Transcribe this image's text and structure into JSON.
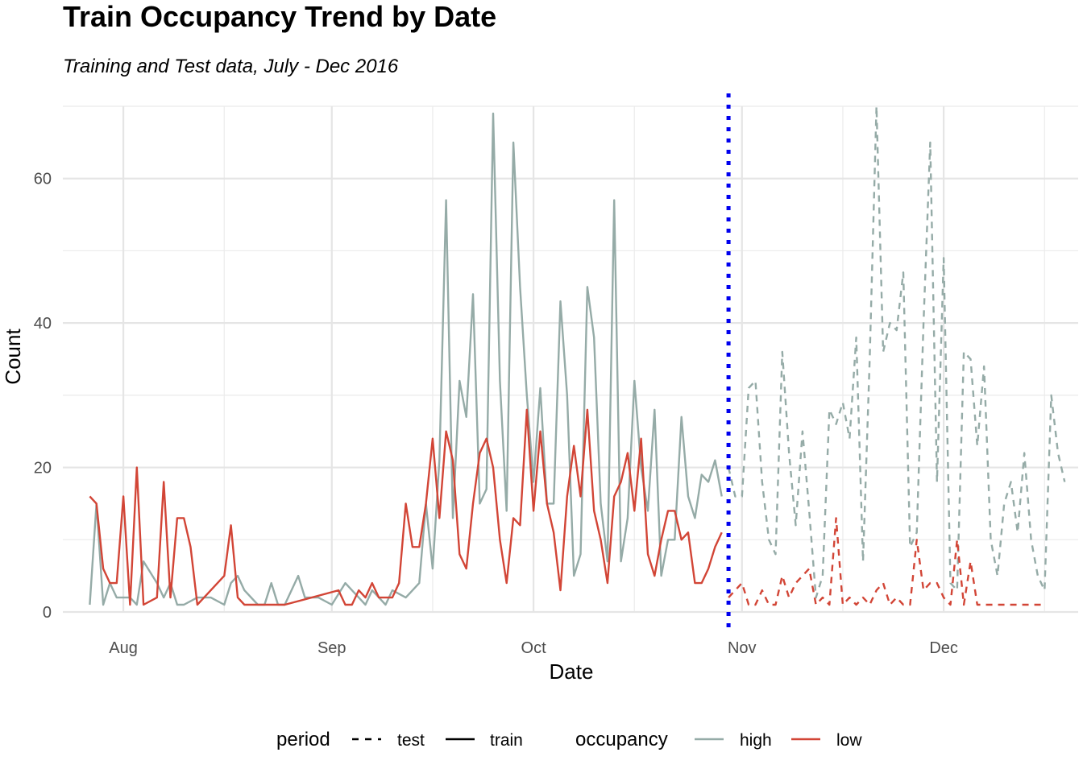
{
  "chart_data": {
    "type": "line",
    "title": "Train Occupancy Trend by Date",
    "subtitle": "Training and Test data, July - Dec 2016",
    "xlabel": "Date",
    "ylabel": "Count",
    "xlim": [
      "2016-07-23",
      "2016-12-21"
    ],
    "ylim": [
      0,
      70
    ],
    "grid": true,
    "x_ticks": [
      {
        "date": "2016-08-01",
        "label": "Aug"
      },
      {
        "date": "2016-09-01",
        "label": "Sep"
      },
      {
        "date": "2016-10-01",
        "label": "Oct"
      },
      {
        "date": "2016-11-01",
        "label": "Nov"
      },
      {
        "date": "2016-12-01",
        "label": "Dec"
      }
    ],
    "y_ticks": [
      0,
      20,
      40,
      60
    ],
    "split_line": {
      "date": "2016-10-30",
      "color": "#0000EE",
      "style": "dotted"
    },
    "legend": {
      "position": "bottom",
      "period_title": "period",
      "period_items": [
        {
          "label": "test",
          "style": "dashed"
        },
        {
          "label": "train",
          "style": "solid"
        }
      ],
      "occupancy_title": "occupancy",
      "occupancy_items": [
        {
          "label": "high",
          "color": "#95ABA7"
        },
        {
          "label": "low",
          "color": "#D24536"
        }
      ]
    },
    "series": [
      {
        "name": "high",
        "period": "train",
        "color": "#95ABA7",
        "x": [
          "2016-07-27",
          "2016-07-28",
          "2016-07-29",
          "2016-07-30",
          "2016-07-31",
          "2016-08-02",
          "2016-08-03",
          "2016-08-04",
          "2016-08-06",
          "2016-08-07",
          "2016-08-08",
          "2016-08-09",
          "2016-08-10",
          "2016-08-12",
          "2016-08-14",
          "2016-08-16",
          "2016-08-17",
          "2016-08-18",
          "2016-08-19",
          "2016-08-21",
          "2016-08-22",
          "2016-08-23",
          "2016-08-24",
          "2016-08-25",
          "2016-08-27",
          "2016-08-28",
          "2016-08-30",
          "2016-09-01",
          "2016-09-03",
          "2016-09-04",
          "2016-09-05",
          "2016-09-06",
          "2016-09-07",
          "2016-09-08",
          "2016-09-09",
          "2016-09-10",
          "2016-09-12",
          "2016-09-14",
          "2016-09-15",
          "2016-09-16",
          "2016-09-17",
          "2016-09-18",
          "2016-09-19",
          "2016-09-20",
          "2016-09-21",
          "2016-09-22",
          "2016-09-23",
          "2016-09-24",
          "2016-09-25",
          "2016-09-26",
          "2016-09-27",
          "2016-09-28",
          "2016-09-29",
          "2016-09-30",
          "2016-10-01",
          "2016-10-02",
          "2016-10-03",
          "2016-10-04",
          "2016-10-05",
          "2016-10-06",
          "2016-10-07",
          "2016-10-08",
          "2016-10-09",
          "2016-10-10",
          "2016-10-11",
          "2016-10-12",
          "2016-10-13",
          "2016-10-14",
          "2016-10-15",
          "2016-10-16",
          "2016-10-17",
          "2016-10-18",
          "2016-10-19",
          "2016-10-20",
          "2016-10-21",
          "2016-10-22",
          "2016-10-23",
          "2016-10-24",
          "2016-10-25",
          "2016-10-26",
          "2016-10-27",
          "2016-10-28",
          "2016-10-29"
        ],
        "y": [
          1,
          15,
          1,
          4,
          2,
          2,
          1,
          7,
          4,
          2,
          4,
          1,
          1,
          2,
          2,
          1,
          4,
          5,
          3,
          1,
          1,
          4,
          1,
          1,
          5,
          2,
          2,
          1,
          4,
          3,
          2,
          1,
          3,
          2,
          1,
          3,
          2,
          4,
          15,
          6,
          21,
          57,
          13,
          32,
          27,
          44,
          15,
          17,
          69,
          32,
          14,
          65,
          45,
          30,
          18,
          31,
          15,
          15,
          43,
          30,
          5,
          8,
          45,
          38,
          15,
          7,
          57,
          7,
          13,
          32,
          20,
          14,
          28,
          5,
          10,
          10,
          27,
          16,
          13,
          19,
          18,
          21,
          16
        ]
      },
      {
        "name": "low",
        "period": "train",
        "color": "#D24536",
        "x": [
          "2016-07-27",
          "2016-07-28",
          "2016-07-29",
          "2016-07-30",
          "2016-07-31",
          "2016-08-01",
          "2016-08-02",
          "2016-08-03",
          "2016-08-04",
          "2016-08-06",
          "2016-08-07",
          "2016-08-08",
          "2016-08-09",
          "2016-08-10",
          "2016-08-11",
          "2016-08-12",
          "2016-08-16",
          "2016-08-17",
          "2016-08-18",
          "2016-08-19",
          "2016-08-21",
          "2016-08-24",
          "2016-08-25",
          "2016-09-02",
          "2016-09-03",
          "2016-09-04",
          "2016-09-05",
          "2016-09-06",
          "2016-09-07",
          "2016-09-08",
          "2016-09-09",
          "2016-09-10",
          "2016-09-11",
          "2016-09-12",
          "2016-09-13",
          "2016-09-14",
          "2016-09-15",
          "2016-09-16",
          "2016-09-17",
          "2016-09-18",
          "2016-09-19",
          "2016-09-20",
          "2016-09-21",
          "2016-09-22",
          "2016-09-23",
          "2016-09-24",
          "2016-09-25",
          "2016-09-26",
          "2016-09-27",
          "2016-09-28",
          "2016-09-29",
          "2016-09-30",
          "2016-10-01",
          "2016-10-02",
          "2016-10-03",
          "2016-10-04",
          "2016-10-05",
          "2016-10-06",
          "2016-10-07",
          "2016-10-08",
          "2016-10-09",
          "2016-10-10",
          "2016-10-11",
          "2016-10-12",
          "2016-10-13",
          "2016-10-14",
          "2016-10-15",
          "2016-10-16",
          "2016-10-17",
          "2016-10-18",
          "2016-10-19",
          "2016-10-20",
          "2016-10-21",
          "2016-10-22",
          "2016-10-23",
          "2016-10-24",
          "2016-10-25",
          "2016-10-26",
          "2016-10-27",
          "2016-10-28",
          "2016-10-29"
        ],
        "y": [
          16,
          15,
          6,
          4,
          4,
          16,
          1,
          20,
          1,
          2,
          18,
          2,
          13,
          13,
          9,
          1,
          5,
          12,
          2,
          1,
          1,
          1,
          1,
          3,
          1,
          1,
          3,
          2,
          4,
          2,
          2,
          2,
          4,
          15,
          9,
          9,
          15,
          24,
          13,
          25,
          21,
          8,
          6,
          15,
          22,
          24,
          20,
          10,
          4,
          13,
          12,
          28,
          14,
          25,
          15,
          11,
          3,
          16,
          23,
          16,
          28,
          14,
          10,
          4,
          16,
          18,
          22,
          14,
          24,
          8,
          5,
          10,
          14,
          14,
          10,
          11,
          4,
          4,
          6,
          9,
          11
        ]
      },
      {
        "name": "high",
        "period": "test",
        "color": "#95ABA7",
        "x": [
          "2016-10-30",
          "2016-10-31",
          "2016-11-01",
          "2016-11-02",
          "2016-11-03",
          "2016-11-04",
          "2016-11-05",
          "2016-11-06",
          "2016-11-07",
          "2016-11-08",
          "2016-11-09",
          "2016-11-10",
          "2016-11-11",
          "2016-11-12",
          "2016-11-13",
          "2016-11-14",
          "2016-11-15",
          "2016-11-16",
          "2016-11-17",
          "2016-11-18",
          "2016-11-19",
          "2016-11-20",
          "2016-11-21",
          "2016-11-22",
          "2016-11-23",
          "2016-11-24",
          "2016-11-25",
          "2016-11-26",
          "2016-11-27",
          "2016-11-28",
          "2016-11-29",
          "2016-11-30",
          "2016-12-01",
          "2016-12-02",
          "2016-12-03",
          "2016-12-04",
          "2016-12-05",
          "2016-12-06",
          "2016-12-07",
          "2016-12-08",
          "2016-12-09",
          "2016-12-10",
          "2016-12-11",
          "2016-12-12",
          "2016-12-13",
          "2016-12-14",
          "2016-12-15",
          "2016-12-16",
          "2016-12-17",
          "2016-12-18",
          "2016-12-19"
        ],
        "y": [
          20,
          16,
          16,
          31,
          32,
          18,
          10,
          8,
          36,
          22,
          12,
          25,
          14,
          2,
          5,
          28,
          26,
          29,
          24,
          38,
          7,
          35,
          70,
          36,
          40,
          39,
          47,
          9,
          11,
          40,
          65,
          18,
          49,
          4,
          3,
          36,
          35,
          23,
          34,
          10,
          5,
          15,
          18,
          11,
          22,
          10,
          5,
          3,
          30,
          22,
          18
        ]
      },
      {
        "name": "low",
        "period": "test",
        "color": "#D24536",
        "x": [
          "2016-10-30",
          "2016-10-31",
          "2016-11-01",
          "2016-11-02",
          "2016-11-03",
          "2016-11-04",
          "2016-11-05",
          "2016-11-06",
          "2016-11-07",
          "2016-11-08",
          "2016-11-09",
          "2016-11-10",
          "2016-11-11",
          "2016-11-12",
          "2016-11-13",
          "2016-11-14",
          "2016-11-15",
          "2016-11-16",
          "2016-11-17",
          "2016-11-18",
          "2016-11-19",
          "2016-11-20",
          "2016-11-21",
          "2016-11-22",
          "2016-11-23",
          "2016-11-24",
          "2016-11-25",
          "2016-11-26",
          "2016-11-27",
          "2016-11-28",
          "2016-11-29",
          "2016-11-30",
          "2016-12-01",
          "2016-12-02",
          "2016-12-03",
          "2016-12-04",
          "2016-12-05",
          "2016-12-06",
          "2016-12-07",
          "2016-12-08",
          "2016-12-09",
          "2016-12-10",
          "2016-12-11",
          "2016-12-12",
          "2016-12-13",
          "2016-12-14",
          "2016-12-15",
          "2016-12-16"
        ],
        "y": [
          2,
          3,
          4,
          1,
          1,
          3,
          1,
          1,
          5,
          2,
          4,
          5,
          6,
          1,
          2,
          1,
          13,
          1,
          2,
          1,
          2,
          1,
          3,
          4,
          1,
          2,
          1,
          1,
          10,
          3,
          4,
          4,
          2,
          1,
          10,
          1,
          7,
          1,
          1,
          1,
          1,
          1,
          1,
          1,
          1,
          1,
          1,
          1
        ]
      }
    ]
  }
}
